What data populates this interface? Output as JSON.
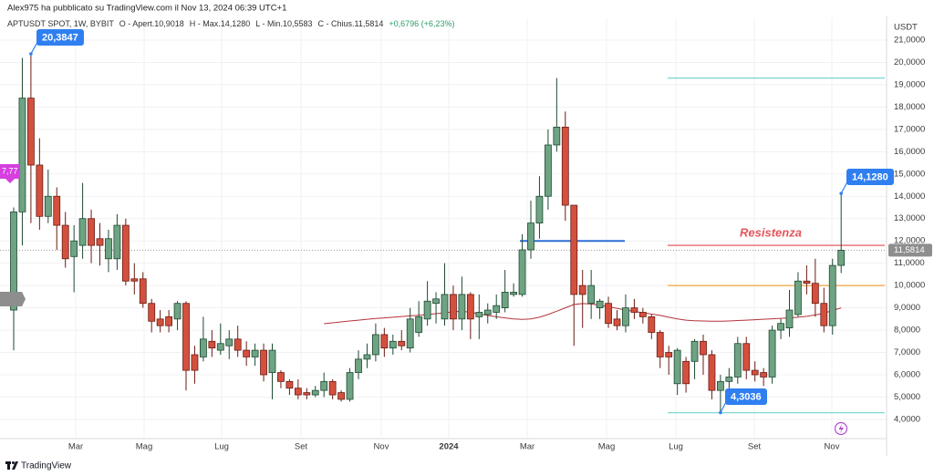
{
  "chart_data": {
    "type": "candlestick",
    "header": "Alex975 ha pubblicato su TradingView.com il Nov 13, 2024 06:39 UTC+1",
    "legend": [
      "APTUSDT SPOT, 1W, BYBIT",
      "O - Apert.10,9018",
      "H - Max.14,1280",
      "L - Min.10,5583",
      "C - Chius.11,5814",
      "+0,6796 (+6,23%)"
    ],
    "currency": "USDT",
    "up_color": "#6ea383",
    "down_color": "#d4503e",
    "open": [
      8.9,
      13.3,
      18.4,
      15.4,
      13.1,
      14.0,
      12.7,
      11.3,
      11.8,
      13.0,
      12.1,
      11.2,
      11.2,
      12.7,
      10.3,
      10.3,
      9.2,
      8.5,
      8.6,
      8.5,
      9.2,
      6.9,
      6.8,
      7.5,
      7.1,
      7.3,
      7.6,
      7.1,
      6.8,
      7.1,
      6.1,
      6.1,
      5.7,
      5.4,
      5.2,
      5.1,
      5.3,
      5.7,
      5.2,
      4.9,
      6.1,
      6.7,
      6.9,
      7.8,
      7.2,
      7.5,
      7.2,
      7.9,
      8.5,
      9.2,
      8.5,
      9.6,
      8.5,
      9.6,
      8.6,
      8.7,
      8.8,
      9.0,
      9.6,
      9.6,
      11.6,
      12.8,
      14.0,
      16.3,
      17.1,
      13.6,
      10.0,
      9.2,
      9.0,
      9.2,
      8.5,
      8.2,
      9.0,
      8.8,
      8.6,
      7.9,
      7.0,
      5.6,
      6.6,
      6.6,
      7.5,
      6.9,
      5.3,
      5.7,
      5.9,
      7.4,
      6.2,
      6.1,
      5.9,
      8.0,
      8.1,
      8.7,
      10.2,
      10.1,
      9.2,
      8.2,
      10.9018
    ],
    "high": [
      13.5,
      20.2,
      20.3847,
      16.6,
      15.2,
      14.4,
      13.3,
      12.7,
      14.6,
      13.4,
      12.8,
      12.5,
      13.2,
      13.0,
      11.0,
      10.6,
      9.4,
      8.9,
      8.9,
      9.3,
      9.3,
      7.3,
      8.6,
      8.0,
      8.3,
      8.0,
      8.2,
      7.5,
      7.4,
      7.4,
      7.4,
      6.2,
      5.8,
      5.8,
      5.4,
      5.5,
      6.1,
      5.8,
      5.3,
      6.3,
      7.1,
      7.4,
      8.3,
      8.1,
      7.8,
      8.0,
      9.0,
      9.3,
      10.2,
      9.7,
      11.0,
      10.0,
      10.4,
      9.7,
      9.6,
      9.2,
      9.6,
      10.7,
      10.1,
      12.3,
      13.8,
      14.9,
      17.0,
      19.3,
      17.8,
      13.6,
      10.7,
      10.7,
      9.4,
      9.5,
      8.9,
      9.6,
      9.4,
      9.0,
      8.7,
      8.0,
      7.3,
      7.2,
      6.8,
      7.6,
      7.8,
      7.1,
      6.0,
      6.3,
      7.7,
      7.7,
      6.6,
      6.3,
      8.2,
      8.5,
      9.8,
      10.6,
      10.9,
      11.2,
      9.9,
      11.2,
      14.128
    ],
    "low": [
      7.1,
      11.8,
      12.8,
      12.5,
      12.8,
      11.6,
      10.8,
      9.7,
      11.2,
      11.0,
      10.9,
      10.6,
      10.7,
      10.0,
      9.6,
      9.0,
      7.9,
      7.9,
      7.9,
      8.0,
      5.3,
      5.6,
      6.6,
      6.8,
      6.9,
      6.7,
      6.8,
      6.4,
      6.4,
      5.7,
      4.9,
      5.4,
      5.1,
      4.9,
      4.9,
      5.0,
      5.0,
      4.9,
      4.8,
      4.8,
      5.8,
      6.3,
      6.6,
      6.8,
      6.9,
      7.1,
      7.0,
      7.7,
      8.2,
      8.3,
      8.2,
      8.0,
      8.0,
      7.6,
      7.6,
      8.3,
      8.5,
      8.8,
      9.5,
      9.5,
      11.2,
      12.1,
      13.4,
      16.0,
      12.9,
      7.3,
      8.1,
      8.5,
      8.5,
      8.1,
      8.0,
      7.9,
      8.5,
      8.3,
      7.6,
      6.3,
      6.0,
      5.1,
      5.2,
      5.8,
      6.0,
      4.9,
      4.3036,
      5.0,
      5.6,
      5.8,
      5.7,
      5.5,
      5.6,
      7.6,
      7.7,
      8.6,
      9.6,
      8.6,
      7.9,
      7.8,
      10.5583
    ],
    "close": [
      13.3,
      18.4,
      15.4,
      13.1,
      14.0,
      12.7,
      11.2,
      12.0,
      13.0,
      11.8,
      11.8,
      12.1,
      12.7,
      10.2,
      10.2,
      9.2,
      8.4,
      8.2,
      8.2,
      9.2,
      6.2,
      6.2,
      7.6,
      7.2,
      7.4,
      7.6,
      7.1,
      6.8,
      7.1,
      6.0,
      7.1,
      5.7,
      5.4,
      5.1,
      5.1,
      5.3,
      5.7,
      5.1,
      4.9,
      6.1,
      6.7,
      6.9,
      7.8,
      7.2,
      7.5,
      7.3,
      8.5,
      8.6,
      9.3,
      9.4,
      9.6,
      8.5,
      9.6,
      8.5,
      8.8,
      8.9,
      9.1,
      9.7,
      9.7,
      11.6,
      12.8,
      14.0,
      16.3,
      17.1,
      13.6,
      9.6,
      9.6,
      10.0,
      9.3,
      8.3,
      8.2,
      9.0,
      8.8,
      8.6,
      7.9,
      6.8,
      6.8,
      7.1,
      5.6,
      7.5,
      6.9,
      5.3,
      5.7,
      5.9,
      7.4,
      6.2,
      6.0,
      5.9,
      8.0,
      8.3,
      8.9,
      10.2,
      10.1,
      9.2,
      8.2,
      10.9,
      11.5814
    ],
    "ma": {
      "color": "#b5333a",
      "values": [
        null,
        null,
        null,
        null,
        null,
        null,
        null,
        null,
        null,
        null,
        null,
        null,
        null,
        null,
        null,
        null,
        null,
        null,
        null,
        null,
        null,
        null,
        null,
        null,
        null,
        null,
        null,
        null,
        null,
        null,
        null,
        null,
        null,
        null,
        null,
        null,
        8.29,
        8.33,
        8.37,
        8.41,
        8.45,
        8.49,
        8.52,
        8.55,
        8.58,
        8.61,
        8.64,
        8.67,
        8.7,
        8.74,
        8.78,
        8.82,
        8.85,
        8.8,
        8.72,
        8.66,
        8.6,
        8.55,
        8.5,
        8.48,
        8.5,
        8.58,
        8.7,
        8.85,
        9.0,
        9.15,
        9.19,
        9.17,
        9.12,
        9.05,
        8.98,
        8.9,
        8.84,
        8.78,
        8.72,
        8.66,
        8.58,
        8.5,
        8.45,
        8.42,
        8.41,
        8.4,
        8.4,
        8.41,
        8.43,
        8.45,
        8.47,
        8.49,
        8.51,
        8.53,
        8.55,
        8.58,
        8.62,
        8.68,
        8.76,
        8.88,
        9.0
      ]
    },
    "ylim": [
      3.18,
      21.98
    ],
    "yticks": [
      {
        "value": 4,
        "label": "4,0000"
      },
      {
        "value": 5,
        "label": "5,0000"
      },
      {
        "value": 6,
        "label": "6,0000"
      },
      {
        "value": 7,
        "label": "7,0000"
      },
      {
        "value": 8,
        "label": "8,0000"
      },
      {
        "value": 9,
        "label": "9,0000"
      },
      {
        "value": 10,
        "label": "10,0000"
      },
      {
        "value": 11,
        "label": "11,0000"
      },
      {
        "value": 12,
        "label": "12,0000"
      },
      {
        "value": 13,
        "label": "13,0000"
      },
      {
        "value": 14,
        "label": "14,0000"
      },
      {
        "value": 15,
        "label": "15,0000"
      },
      {
        "value": 16,
        "label": "16,0000"
      },
      {
        "value": 17,
        "label": "17,0000"
      },
      {
        "value": 18,
        "label": "18,0000"
      },
      {
        "value": 19,
        "label": "19,0000"
      },
      {
        "value": 20,
        "label": "20,0000"
      },
      {
        "value": 21,
        "label": "21,0000"
      }
    ],
    "xtick_labels": [
      "Mar",
      "Mag",
      "Lug",
      "Set",
      "Nov",
      "2024",
      "Mar",
      "Mag",
      "Lug",
      "Set",
      "Nov"
    ],
    "grid": true,
    "levels": [
      {
        "value": 19.3,
        "color": "#7fd8d0"
      },
      {
        "value": 11.8,
        "color": "#e46a6f"
      },
      {
        "value": 10.0,
        "color": "#f3a53c"
      },
      {
        "value": 4.3,
        "color": "#7fd8d0"
      },
      {
        "value": 12.0,
        "color": "#2f6fd6"
      }
    ],
    "level_label": "Resistenza",
    "annotations": [
      {
        "value": 20.3847,
        "label": "20,3847",
        "color": "#2f7ff0"
      },
      {
        "value": 14.128,
        "label": "14,1280",
        "color": "#2f7ff0"
      },
      {
        "value": 4.3036,
        "label": "4,3036",
        "color": "#2f7ff0"
      }
    ],
    "last_price": {
      "value": 11.5814,
      "label": "11,5814"
    },
    "edge_label": "7,77",
    "footer": "TradingView"
  }
}
